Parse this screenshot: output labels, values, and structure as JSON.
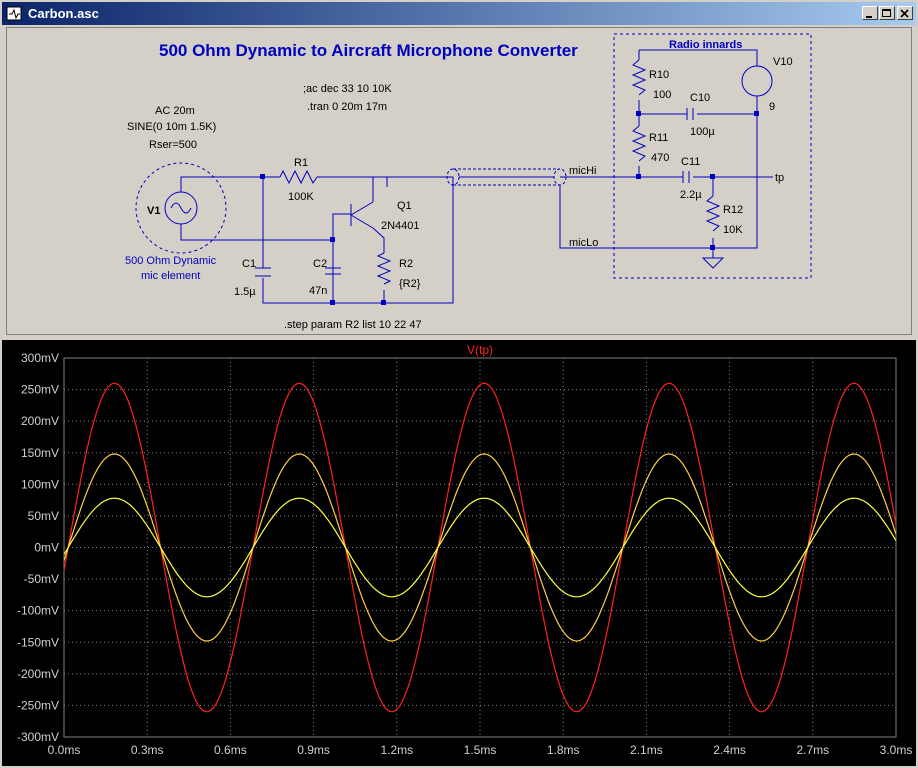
{
  "window": {
    "title": "Carbon.asc",
    "buttons": {
      "minimize": "minimize",
      "maximize": "maximize",
      "close": "close"
    }
  },
  "schematic": {
    "title": "500 Ohm Dynamic to Aircraft Microphone Converter",
    "directives": {
      "ac": ";ac dec 33 10 10K",
      "tran": ".tran 0 20m 17m",
      "step": ".step param R2 list  10 22 47"
    },
    "source": {
      "name": "V1",
      "line1": "AC 20m",
      "line2": "SINE(0 10m 1.5K)",
      "line3": "Rser=500",
      "label_line1": "500 Ohm Dynamic",
      "label_line2": "mic element"
    },
    "components": {
      "R1": {
        "name": "R1",
        "value": "100K"
      },
      "Q1": {
        "name": "Q1",
        "value": "2N4401"
      },
      "R2": {
        "name": "R2",
        "value": "{R2}"
      },
      "C1": {
        "name": "C1",
        "value": "1.5µ"
      },
      "C2": {
        "name": "C2",
        "value": "47n"
      },
      "R10": {
        "name": "R10",
        "value": "100"
      },
      "R11": {
        "name": "R11",
        "value": "470"
      },
      "R12": {
        "name": "R12",
        "value": "10K"
      },
      "C10": {
        "name": "C10",
        "value": "100µ"
      },
      "C11": {
        "name": "C11",
        "value": "2.2µ"
      },
      "V10": {
        "name": "V10",
        "value": "9"
      }
    },
    "nets": {
      "micHi": "micHi",
      "micLo": "micLo",
      "tp": "tp"
    },
    "box_label": "Radio innards"
  },
  "plot": {
    "trace_label": "V(tp)",
    "colors": {
      "trace1": "#ff2020",
      "trace2": "#ffd040",
      "trace3": "#ffff40",
      "grid": "#808080",
      "bg": "#000000"
    }
  },
  "chart_data": {
    "type": "line",
    "title": "V(tp)",
    "xlabel": "",
    "ylabel": "",
    "x_ticks": [
      "0.0ms",
      "0.3ms",
      "0.6ms",
      "0.9ms",
      "1.2ms",
      "1.5ms",
      "1.8ms",
      "2.1ms",
      "2.4ms",
      "2.7ms",
      "3.0ms"
    ],
    "y_ticks": [
      "300mV",
      "250mV",
      "200mV",
      "150mV",
      "100mV",
      "50mV",
      "0mV",
      "-50mV",
      "-100mV",
      "-150mV",
      "-200mV",
      "-250mV",
      "-300mV"
    ],
    "xlim": [
      0,
      3.0
    ],
    "ylim": [
      -300,
      300
    ],
    "grid": true,
    "frequency_kHz": 1.5,
    "series": [
      {
        "amplitude_mV": 260,
        "phase_offset_ms": 0.015
      },
      {
        "amplitude_mV": 148,
        "phase_offset_ms": 0.015
      },
      {
        "amplitude_mV": 78,
        "phase_offset_ms": 0.015
      }
    ]
  }
}
